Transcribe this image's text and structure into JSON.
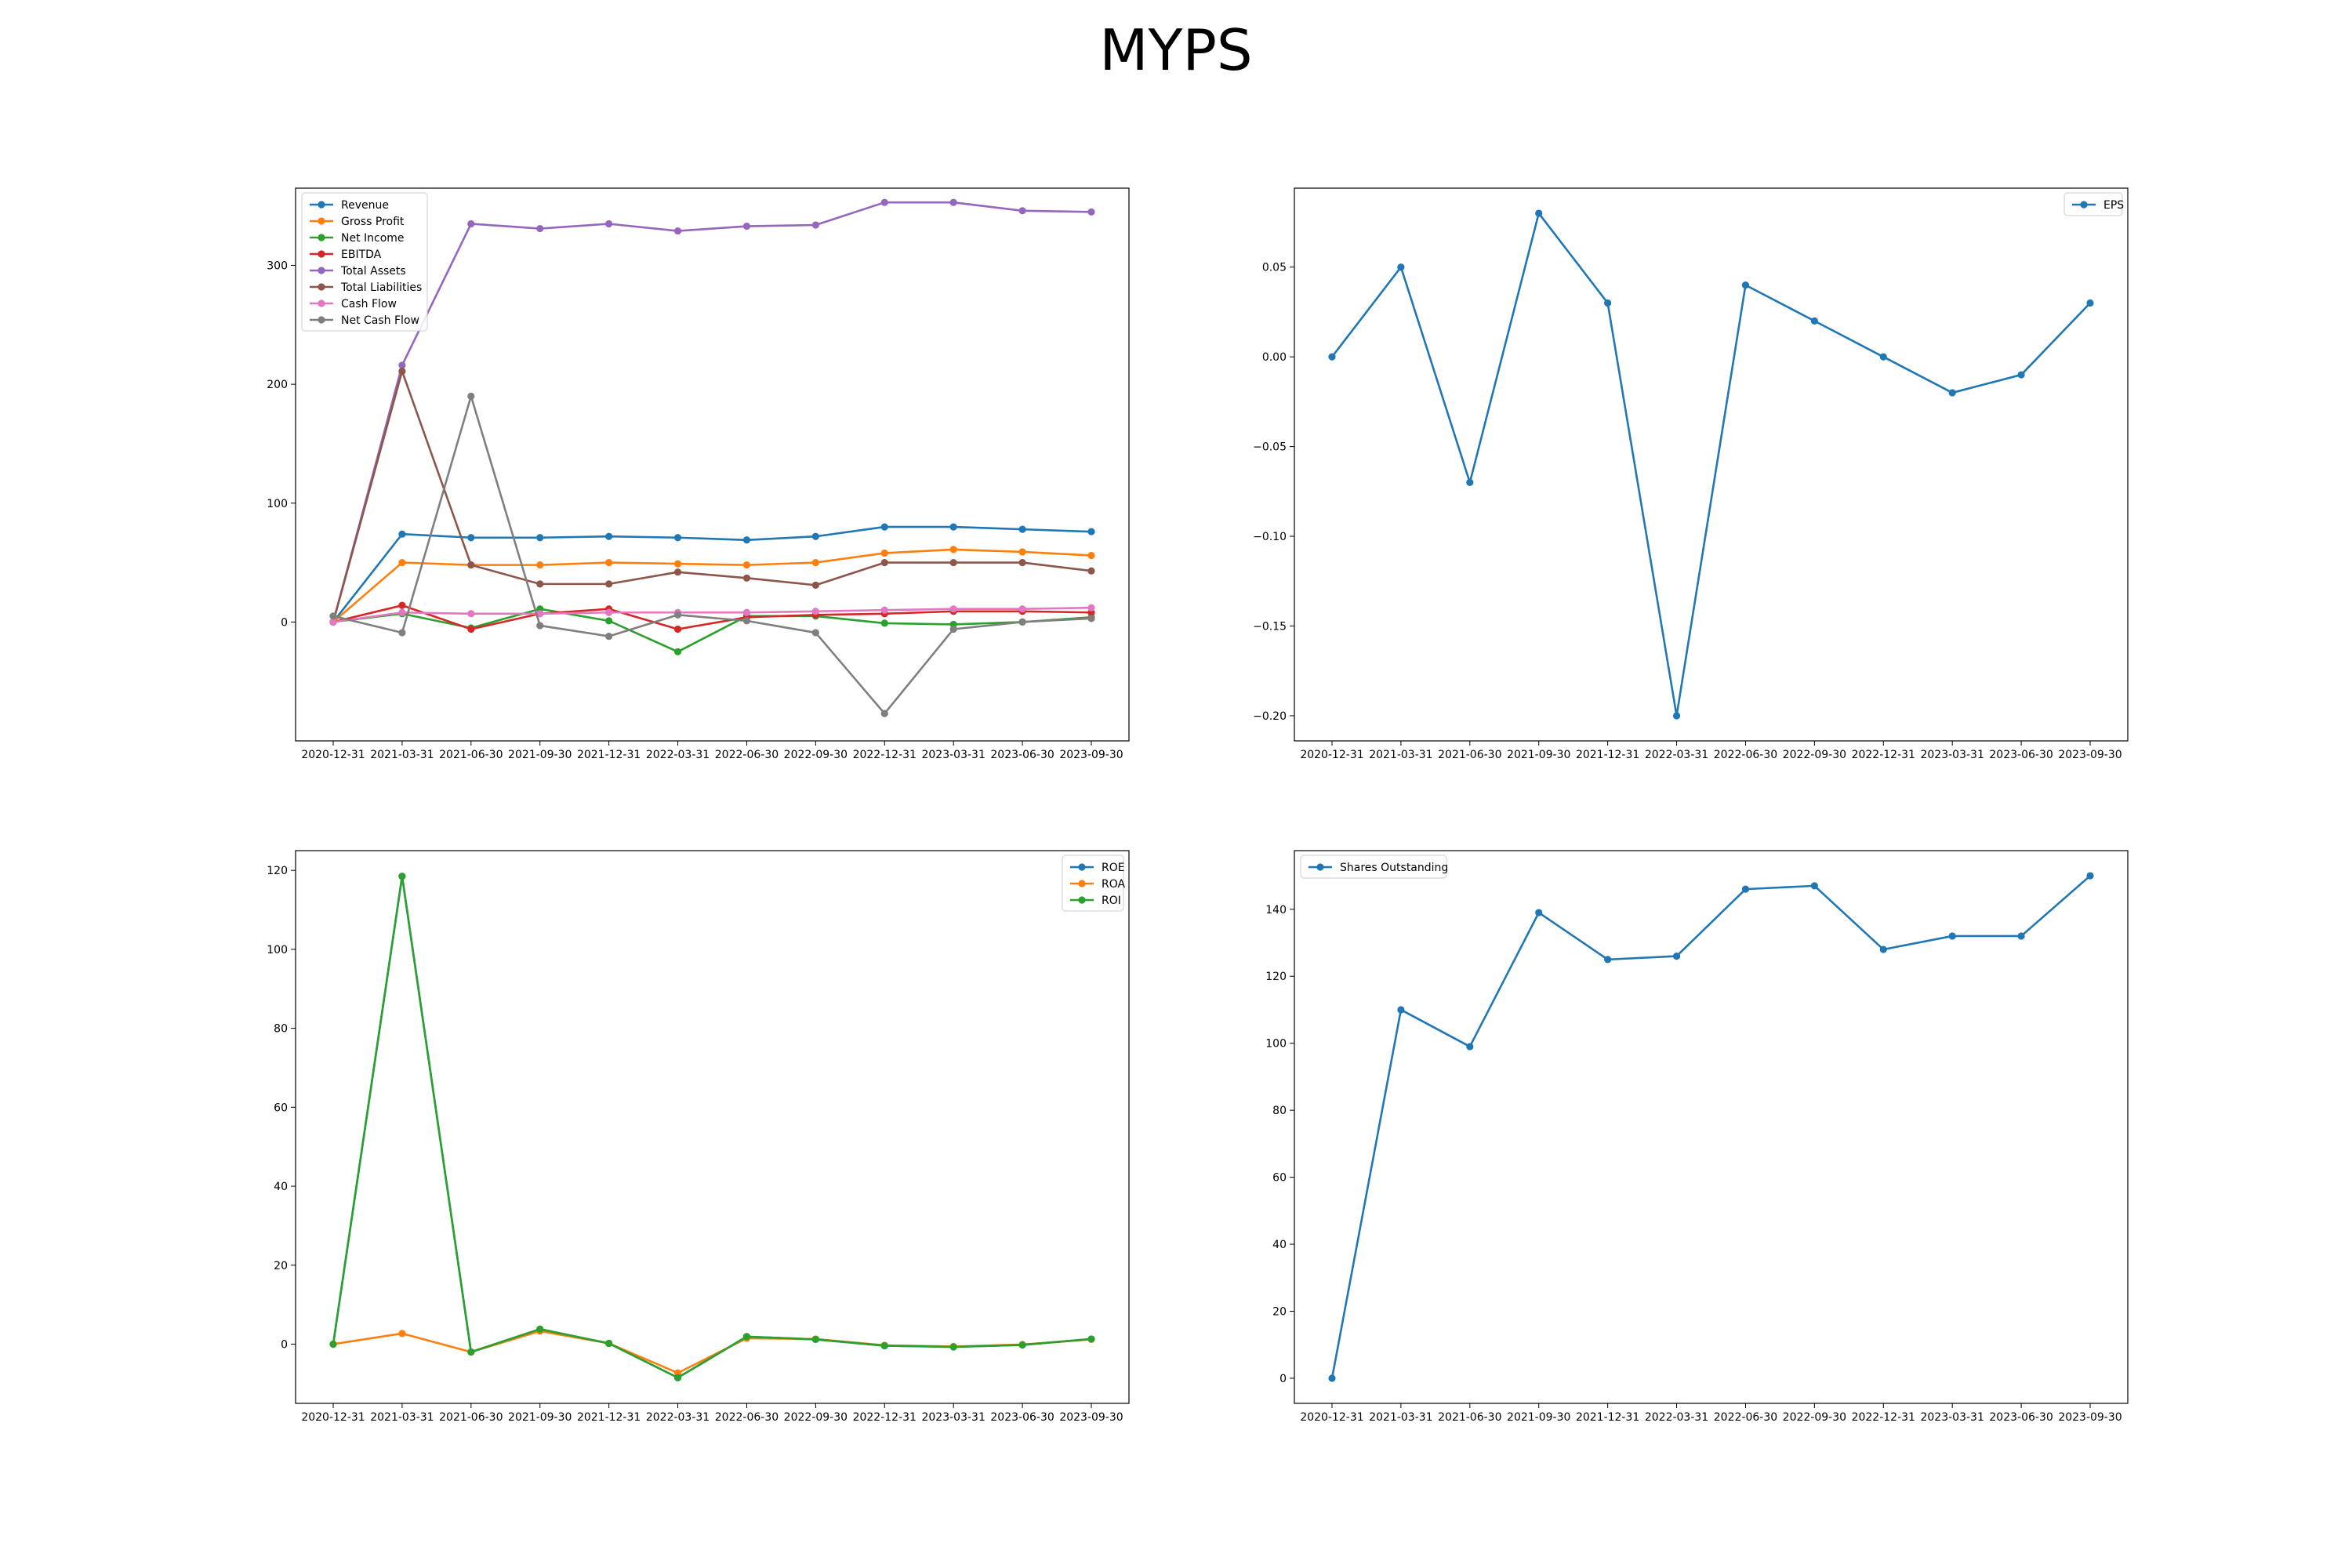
{
  "figure": {
    "title": "MYPS"
  },
  "chart_data": [
    {
      "id": "financials",
      "type": "line",
      "title": "",
      "xlabel": "",
      "ylabel": "",
      "legend_position": "upper left",
      "grid": false,
      "ylim": [
        -100,
        365
      ],
      "yticks": [
        0,
        100,
        200,
        300
      ],
      "categories": [
        "2020-12-31",
        "2021-03-31",
        "2021-06-30",
        "2021-09-30",
        "2021-12-31",
        "2022-03-31",
        "2022-06-30",
        "2022-09-30",
        "2022-12-31",
        "2023-03-31",
        "2023-06-30",
        "2023-09-30"
      ],
      "series": [
        {
          "name": "Revenue",
          "color": "#1f77b4",
          "values": [
            0,
            74,
            71,
            71,
            72,
            71,
            69,
            72,
            80,
            80,
            78,
            76
          ]
        },
        {
          "name": "Gross Profit",
          "color": "#ff7f0e",
          "values": [
            0,
            50,
            48,
            48,
            50,
            49,
            48,
            50,
            58,
            61,
            59,
            56
          ]
        },
        {
          "name": "Net Income",
          "color": "#2ca02c",
          "values": [
            0,
            7,
            -5,
            11,
            1,
            -25,
            5,
            5,
            -1,
            -2,
            0,
            4
          ]
        },
        {
          "name": "EBITDA",
          "color": "#d62728",
          "values": [
            0,
            14,
            -6,
            7,
            11,
            -6,
            4,
            6,
            7,
            9,
            9,
            8
          ]
        },
        {
          "name": "Total Assets",
          "color": "#9467bd",
          "values": [
            0,
            216,
            335,
            331,
            335,
            329,
            333,
            334,
            353,
            353,
            346,
            345
          ]
        },
        {
          "name": "Total Liabilities",
          "color": "#8c564b",
          "values": [
            0,
            211,
            48,
            32,
            32,
            42,
            37,
            31,
            50,
            50,
            50,
            43
          ]
        },
        {
          "name": "Cash Flow",
          "color": "#e377c2",
          "values": [
            0,
            8,
            7,
            7,
            8,
            8,
            8,
            9,
            10,
            11,
            11,
            12
          ]
        },
        {
          "name": "Net Cash Flow",
          "color": "#7f7f7f",
          "values": [
            5,
            -9,
            190,
            -3,
            -12,
            6,
            1,
            -9,
            -77,
            -6,
            0,
            3
          ]
        }
      ]
    },
    {
      "id": "eps",
      "type": "line",
      "title": "",
      "xlabel": "",
      "ylabel": "",
      "legend_position": "upper right",
      "grid": false,
      "ylim": [
        -0.214,
        0.094
      ],
      "yticks": [
        -0.2,
        -0.15,
        -0.1,
        -0.05,
        0.0,
        0.05
      ],
      "ytick_labels": [
        "−0.20",
        "−0.15",
        "−0.10",
        "−0.05",
        "0.00",
        "0.05"
      ],
      "categories": [
        "2020-12-31",
        "2021-03-31",
        "2021-06-30",
        "2021-09-30",
        "2021-12-31",
        "2022-03-31",
        "2022-06-30",
        "2022-09-30",
        "2022-12-31",
        "2023-03-31",
        "2023-06-30",
        "2023-09-30"
      ],
      "series": [
        {
          "name": "EPS",
          "color": "#1f77b4",
          "values": [
            0.0,
            0.05,
            -0.07,
            0.08,
            0.03,
            -0.2,
            0.04,
            0.02,
            0.0,
            -0.02,
            -0.01,
            0.03
          ]
        }
      ]
    },
    {
      "id": "returns",
      "type": "line",
      "title": "",
      "xlabel": "",
      "ylabel": "",
      "legend_position": "upper right",
      "grid": false,
      "ylim": [
        -15,
        125
      ],
      "yticks": [
        0,
        20,
        40,
        60,
        80,
        100,
        120
      ],
      "categories": [
        "2020-12-31",
        "2021-03-31",
        "2021-06-30",
        "2021-09-30",
        "2021-12-31",
        "2022-03-31",
        "2022-06-30",
        "2022-09-30",
        "2022-12-31",
        "2023-03-31",
        "2023-06-30",
        "2023-09-30"
      ],
      "series": [
        {
          "name": "ROE",
          "color": "#1f77b4",
          "values": [
            0,
            118.5,
            -2,
            3.8,
            0.2,
            -8.5,
            1.9,
            1.2,
            -0.4,
            -0.7,
            -0.2,
            1.3
          ]
        },
        {
          "name": "ROA",
          "color": "#ff7f0e",
          "values": [
            0,
            2.7,
            -2,
            3.3,
            0.2,
            -7.3,
            1.5,
            1.3,
            -0.3,
            -0.6,
            -0.1,
            1.2
          ]
        },
        {
          "name": "ROI",
          "color": "#2ca02c",
          "values": [
            0,
            118.5,
            -2,
            3.8,
            0.2,
            -8.5,
            1.9,
            1.2,
            -0.4,
            -0.7,
            -0.2,
            1.3
          ]
        }
      ]
    },
    {
      "id": "shares",
      "type": "line",
      "title": "",
      "xlabel": "",
      "ylabel": "",
      "legend_position": "upper left",
      "grid": false,
      "ylim": [
        -7.5,
        157.5
      ],
      "yticks": [
        0,
        20,
        40,
        60,
        80,
        100,
        120,
        140
      ],
      "categories": [
        "2020-12-31",
        "2021-03-31",
        "2021-06-30",
        "2021-09-30",
        "2021-12-31",
        "2022-03-31",
        "2022-06-30",
        "2022-09-30",
        "2022-12-31",
        "2023-03-31",
        "2023-06-30",
        "2023-09-30"
      ],
      "series": [
        {
          "name": "Shares Outstanding",
          "color": "#1f77b4",
          "values": [
            0,
            110,
            99,
            139,
            125,
            126,
            146,
            147,
            128,
            132,
            132,
            150
          ]
        }
      ]
    }
  ]
}
